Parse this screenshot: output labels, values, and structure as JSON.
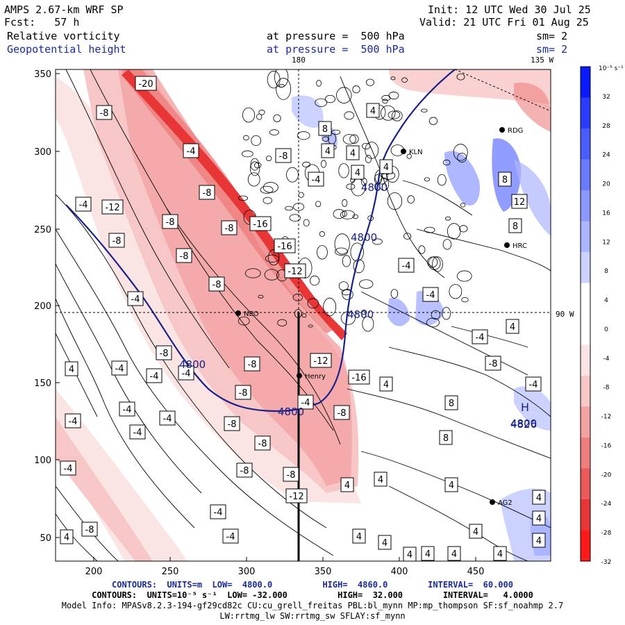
{
  "header": {
    "model": "AMPS 2.67-km WRF SP",
    "init": "Init: 12 UTC Wed 30 Jul 25",
    "fcst": "Fcst:   57 h",
    "valid": "Valid: 21 UTC Fri 01 Aug 25",
    "field1": "Relative vorticity",
    "field1_level": "at pressure =  500 hPa",
    "field1_sm": "sm= 2",
    "field2": "Geopotential height",
    "field2_level": "at pressure =  500 hPa",
    "field2_sm": "sm= 2"
  },
  "map_labels": {
    "lon_top_180": "180",
    "lon_top_135w": "135 W",
    "lat_right_90w": "90 W"
  },
  "axes": {
    "x_ticks": [
      "200",
      "250",
      "300",
      "350",
      "400",
      "450"
    ],
    "y_ticks": [
      "350",
      "300",
      "250",
      "200",
      "150",
      "100",
      "50"
    ]
  },
  "stations": [
    "RDG",
    "KLN",
    "HRC",
    "NEO",
    "Henry",
    "AG2"
  ],
  "colorbar": {
    "unit": "10⁻⁵ s⁻¹",
    "labels": [
      "32",
      "28",
      "24",
      "20",
      "16",
      "12",
      "8",
      "4",
      "0",
      "-4",
      "-8",
      "-12",
      "-16",
      "-20",
      "-24",
      "-28",
      "-32"
    ],
    "colors": [
      "#0a1aff",
      "#2a3dff",
      "#4b5cff",
      "#6b7bff",
      "#8b98ff",
      "#acb5ff",
      "#ccd2ff",
      "#ffffff",
      "#ffffff",
      "#fbe4e4",
      "#f7c6c6",
      "#f2a2a2",
      "#ee7e7e",
      "#ea5a5a",
      "#e83636",
      "#ff1a1a"
    ]
  },
  "contour_labels": {
    "height": [
      "4800",
      "4800",
      "4800",
      "4800",
      "4800",
      "4800",
      "4826"
    ],
    "vort": [
      "-20",
      "-8",
      "-4",
      "-8",
      "-8",
      "-4",
      "-12",
      "-8",
      "-8",
      "-8",
      "-16",
      "-16",
      "-8",
      "-4",
      "-12",
      "-4",
      "-8",
      "-8",
      "-12",
      "-4",
      "-4",
      "-8",
      "-4",
      "-8",
      "-8",
      "-8",
      "-4",
      "-4",
      "-8",
      "-8",
      "-8",
      "-12",
      "-4",
      "-4",
      "-4",
      "-4",
      "4",
      "4",
      "4",
      "4",
      "4",
      "4",
      "4",
      "4",
      "4",
      "8",
      "8",
      "12",
      "8",
      "8",
      "4",
      "-4",
      "-4",
      "-8",
      "-4",
      "-4",
      "-4",
      "-4",
      "-16",
      "4",
      "4",
      "4",
      "4",
      "4",
      "4",
      "4",
      "4",
      "8",
      "-8",
      "4",
      "4",
      "4",
      "4"
    ]
  },
  "h_label": "H",
  "footer": {
    "line1": "CONTOURS:  UNITS=m  LOW=  4800.0          HIGH=  4860.0        INTERVAL=  60.000",
    "line2": "CONTOURS:  UNITS=10⁻⁵ s⁻¹  LOW= -32.000          HIGH=  32.000        INTERVAL=   4.0000",
    "line3": "Model Info: MPASv8.2.3-194-gf29cd82c CU:cu_grell_freitas PBL:bl_mynn MP:mp_thompson SF:sf_noahmp 2.7",
    "line4": "LW:rrtmg_lw SW:rrtmg_sw SFLAY:sf_mynn"
  }
}
